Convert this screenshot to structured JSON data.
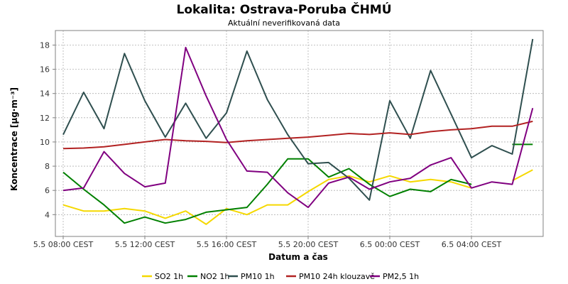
{
  "chart_data": {
    "type": "line",
    "title": "Lokalita: Ostrava-Poruba ČHMÚ",
    "subtitle": "Aktuální neverifikovaná data",
    "xlabel": "Datum a čas",
    "ylabel": "Koncentrace [µg·m⁻³]",
    "x": [
      "5.5 08:00",
      "5.5 09:00",
      "5.5 10:00",
      "5.5 11:00",
      "5.5 12:00",
      "5.5 13:00",
      "5.5 14:00",
      "5.5 15:00",
      "5.5 16:00",
      "5.5 17:00",
      "5.5 18:00",
      "5.5 19:00",
      "5.5 20:00",
      "5.5 21:00",
      "5.5 22:00",
      "5.5 23:00",
      "6.5 00:00",
      "6.5 01:00",
      "6.5 02:00",
      "6.5 03:00",
      "6.5 04:00",
      "6.5 05:00",
      "6.5 06:00",
      "6.5 07:00"
    ],
    "x_ticks": [
      {
        "index": 0,
        "label": "5.5 08:00 CEST"
      },
      {
        "index": 4,
        "label": "5.5 12:00 CEST"
      },
      {
        "index": 8,
        "label": "5.5 16:00 CEST"
      },
      {
        "index": 12,
        "label": "5.5 20:00 CEST"
      },
      {
        "index": 16,
        "label": "6.5 00:00 CEST"
      },
      {
        "index": 20,
        "label": "6.5 04:00 CEST"
      }
    ],
    "yticks": [
      4,
      6,
      8,
      10,
      12,
      14,
      16,
      18
    ],
    "ylim": [
      2.2,
      19.2
    ],
    "grid": true,
    "legend_position": "bottom",
    "series": [
      {
        "name": "SO2 1h",
        "color": "#f5d800",
        "values": [
          4.8,
          4.3,
          4.3,
          4.5,
          4.3,
          3.7,
          4.3,
          3.2,
          4.5,
          4.0,
          4.8,
          4.8,
          5.9,
          6.9,
          7.2,
          6.7,
          7.2,
          6.7,
          6.9,
          6.7,
          6.2,
          null,
          6.8,
          7.7
        ]
      },
      {
        "name": "NO2 1h",
        "color": "#008000",
        "values": [
          7.5,
          6.1,
          4.8,
          3.3,
          3.8,
          3.3,
          3.6,
          4.2,
          4.4,
          4.6,
          6.5,
          8.6,
          8.6,
          7.1,
          7.8,
          6.5,
          5.5,
          6.1,
          5.9,
          6.9,
          6.5,
          null,
          9.8,
          9.8
        ]
      },
      {
        "name": "PM10 1h",
        "color": "#2f4f4f",
        "values": [
          10.6,
          14.1,
          11.1,
          17.3,
          13.4,
          10.4,
          13.2,
          10.3,
          12.4,
          17.5,
          13.5,
          10.6,
          8.2,
          8.3,
          7.0,
          5.2,
          13.4,
          10.3,
          15.9,
          12.3,
          8.7,
          9.7,
          9.0,
          18.5
        ]
      },
      {
        "name": "PM10 24h klouzavě",
        "color": "#b22222",
        "values": [
          9.45,
          9.5,
          9.6,
          9.8,
          10.0,
          10.2,
          10.1,
          10.05,
          9.95,
          10.1,
          10.2,
          10.3,
          10.4,
          10.55,
          10.7,
          10.62,
          10.75,
          10.62,
          10.85,
          11.0,
          11.1,
          11.3,
          11.3,
          11.7
        ]
      },
      {
        "name": "PM2,5 1h",
        "color": "#800080",
        "values": [
          6.0,
          6.2,
          9.2,
          7.4,
          6.3,
          6.6,
          17.8,
          13.8,
          10.2,
          7.6,
          7.5,
          5.8,
          4.6,
          6.6,
          7.1,
          6.1,
          6.7,
          7.0,
          8.1,
          8.7,
          6.2,
          6.7,
          6.5,
          12.8
        ]
      }
    ]
  }
}
